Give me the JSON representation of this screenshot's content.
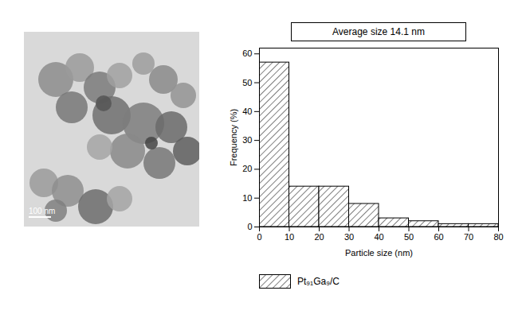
{
  "chart_data": {
    "type": "histogram",
    "title": "Average size 14.1 nm",
    "x_label": "Particle size (nm)",
    "y_label": "Frequency (%)",
    "bins": [
      0,
      10,
      20,
      30,
      40,
      50,
      60,
      70,
      80
    ],
    "series": [
      {
        "name": "Pt₉₁Ga₉/C",
        "color": "#000000",
        "values": [
          57,
          14,
          14,
          8,
          3,
          2,
          1,
          1
        ]
      }
    ],
    "xlim": [
      0,
      80
    ],
    "ylim": [
      0,
      62
    ],
    "xticks": [
      0,
      10,
      20,
      30,
      40,
      50,
      60,
      70,
      80
    ],
    "yticks": [
      0,
      10,
      20,
      30,
      40,
      50,
      60
    ],
    "legend": "bottom"
  },
  "micrograph": {
    "scale_bar": "100 nm"
  }
}
